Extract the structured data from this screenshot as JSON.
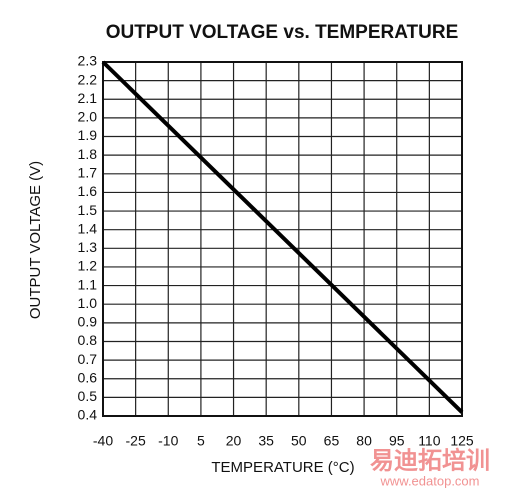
{
  "chart_data": {
    "type": "line",
    "title": "OUTPUT VOLTAGE vs. TEMPERATURE",
    "x_label": "TEMPERATURE (°C)",
    "y_label": "OUTPUT VOLTAGE (V)",
    "x": [
      -40,
      125
    ],
    "series": [
      {
        "color": "#000000",
        "values": [
          2.3,
          0.42
        ]
      }
    ],
    "xlim": [
      -40,
      125
    ],
    "xticks": [
      -40,
      -25,
      -10,
      5,
      20,
      35,
      50,
      65,
      80,
      95,
      110,
      125
    ],
    "ylim": [
      0.4,
      2.3
    ],
    "yticks": [
      0.4,
      0.5,
      0.6,
      0.7,
      0.8,
      0.9,
      {
        "value": 1,
        "label": "1.0"
      },
      1.1,
      1.2,
      1.3,
      1.4,
      1.5,
      1.6,
      1.7,
      1.8,
      1.9,
      {
        "value": 2,
        "label": "2.0"
      },
      2.1,
      2.2,
      2.3
    ],
    "grid": true
  },
  "watermark": {
    "brand": "易迪拓培训",
    "url": "www.edatop.com"
  }
}
